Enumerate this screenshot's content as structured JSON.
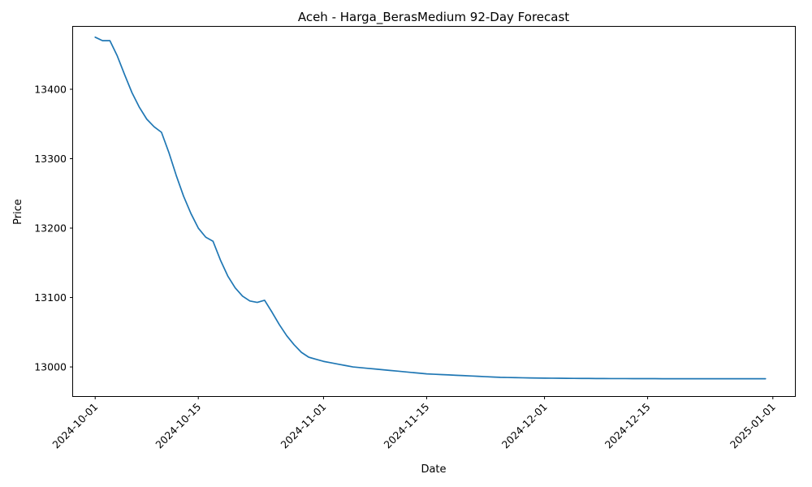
{
  "chart_data": {
    "type": "line",
    "title": "Aceh - Harga_BerasMedium 92-Day Forecast",
    "xlabel": "Date",
    "ylabel": "Price",
    "grid": false,
    "legend": "none",
    "xlim": [
      "2024-09-28",
      "2025-01-04"
    ],
    "ylim": [
      12958,
      13490
    ],
    "x_ticks": [
      "2024-10-01",
      "2024-10-15",
      "2024-11-01",
      "2024-11-15",
      "2024-12-01",
      "2024-12-15",
      "2025-01-01"
    ],
    "y_ticks": [
      13000,
      13100,
      13200,
      13300,
      13400
    ],
    "series_color": "#1f77b4",
    "series": [
      {
        "x": [
          "2024-10-01",
          "2024-10-02",
          "2024-10-03",
          "2024-10-04",
          "2024-10-05",
          "2024-10-06",
          "2024-10-07",
          "2024-10-08",
          "2024-10-09",
          "2024-10-10",
          "2024-10-11",
          "2024-10-12",
          "2024-10-13",
          "2024-10-14",
          "2024-10-15",
          "2024-10-16",
          "2024-10-17",
          "2024-10-18",
          "2024-10-19",
          "2024-10-20",
          "2024-10-21",
          "2024-10-22",
          "2024-10-23",
          "2024-10-24",
          "2024-10-25",
          "2024-10-26",
          "2024-10-27",
          "2024-10-28",
          "2024-10-29",
          "2024-10-30",
          "2024-10-31",
          "2024-11-01",
          "2024-11-02",
          "2024-11-03",
          "2024-11-04",
          "2024-11-05",
          "2024-11-06",
          "2024-11-07",
          "2024-11-08",
          "2024-11-09",
          "2024-11-10",
          "2024-11-11",
          "2024-11-12",
          "2024-11-13",
          "2024-11-14",
          "2024-11-15",
          "2024-11-16",
          "2024-11-17",
          "2024-11-18",
          "2024-11-19",
          "2024-11-20",
          "2024-11-21",
          "2024-11-22",
          "2024-11-23",
          "2024-11-24",
          "2024-11-25",
          "2024-11-26",
          "2024-11-27",
          "2024-11-28",
          "2024-11-29",
          "2024-11-30",
          "2024-12-01",
          "2024-12-02",
          "2024-12-03",
          "2024-12-04",
          "2024-12-05",
          "2024-12-06",
          "2024-12-07",
          "2024-12-08",
          "2024-12-09",
          "2024-12-10",
          "2024-12-11",
          "2024-12-12",
          "2024-12-13",
          "2024-12-14",
          "2024-12-15",
          "2024-12-16",
          "2024-12-17",
          "2024-12-18",
          "2024-12-19",
          "2024-12-20",
          "2024-12-21",
          "2024-12-22",
          "2024-12-23",
          "2024-12-24",
          "2024-12-25",
          "2024-12-26",
          "2024-12-27",
          "2024-12-28",
          "2024-12-29",
          "2024-12-30",
          "2024-12-31"
        ],
        "y": [
          13475,
          13470,
          13470,
          13448,
          13421,
          13395,
          13374,
          13357,
          13346,
          13338,
          13309,
          13276,
          13246,
          13221,
          13200,
          13187,
          13181,
          13154,
          13131,
          13114,
          13102,
          13095,
          13093,
          13096,
          13079,
          13061,
          13045,
          13032,
          13021,
          13014,
          13011,
          13008,
          13006,
          13004,
          13002,
          13000,
          12999,
          12998,
          12997,
          12996,
          12995,
          12994,
          12993,
          12992,
          12991,
          12990,
          12989.5,
          12989,
          12988.5,
          12988,
          12987.5,
          12987,
          12986.5,
          12986,
          12985.5,
          12985,
          12984.8,
          12984.6,
          12984.4,
          12984.2,
          12984,
          12983.9,
          12983.8,
          12983.7,
          12983.6,
          12983.5,
          12983.4,
          12983.4,
          12983.3,
          12983.3,
          12983.2,
          12983.2,
          12983.2,
          12983.1,
          12983.1,
          12983.1,
          12983.1,
          12983,
          12983,
          12983,
          12983,
          12983,
          12983,
          12983,
          12983,
          12983,
          12983,
          12983,
          12983,
          12983,
          12983,
          12983
        ]
      }
    ]
  }
}
